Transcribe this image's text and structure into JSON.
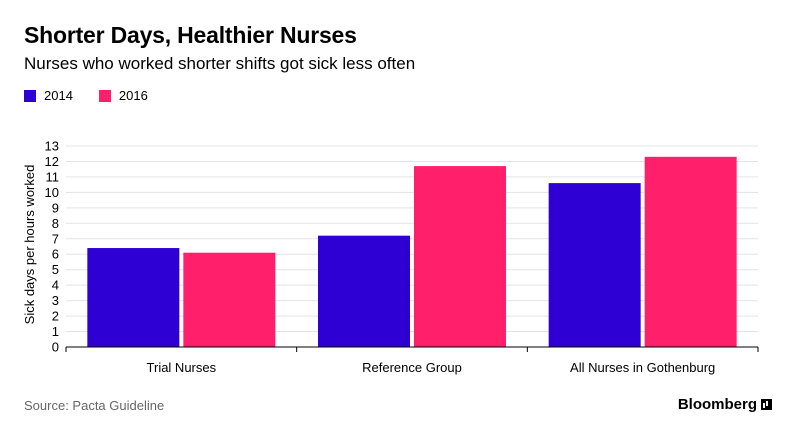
{
  "header": {
    "title": "Shorter Days, Healthier Nurses",
    "subtitle": "Nurses who worked shorter shifts got sick less often"
  },
  "footer": {
    "source": "Source: Pacta Guideline",
    "brand": "Bloomberg",
    "brand_icon": "bloomberg-chart-icon"
  },
  "colors": {
    "series_2014": "#2e00d4",
    "series_2016": "#ff1f6b",
    "grid": "#e3e3e3",
    "axis": "#000000"
  },
  "chart_data": {
    "type": "bar",
    "title": "Shorter Days, Healthier Nurses",
    "subtitle": "Nurses who worked shorter shifts got sick less often",
    "xlabel": "",
    "ylabel": "Sick days per hours worked",
    "categories": [
      "Trial Nurses",
      "Reference Group",
      "All Nurses in Gothenburg"
    ],
    "series": [
      {
        "name": "2014",
        "color": "#2e00d4",
        "values": [
          6.4,
          7.2,
          10.6
        ]
      },
      {
        "name": "2016",
        "color": "#ff1f6b",
        "values": [
          6.1,
          11.7,
          12.3
        ]
      }
    ],
    "ylim": [
      0,
      13
    ],
    "yticks": [
      0,
      1,
      2,
      3,
      4,
      5,
      6,
      7,
      8,
      9,
      10,
      11,
      12,
      13
    ],
    "grid": true,
    "legend": "top-left"
  }
}
